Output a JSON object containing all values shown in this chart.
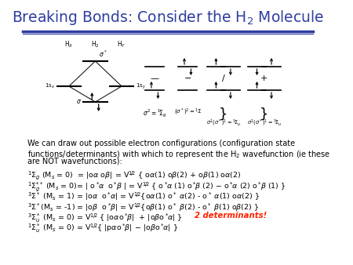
{
  "title": "Breaking Bonds: Consider the H$_2$ Molecule",
  "title_color": "#2E3DA0",
  "title_fontsize": 13.5,
  "bg_color": "#FFFFFF",
  "header_line_color": "#2E3DA0",
  "body_text_color": "#000000",
  "body_fontsize": 7.0,
  "eq_fontsize": 6.8,
  "red_text": "2 determinants!",
  "red_color": "#FF2200"
}
